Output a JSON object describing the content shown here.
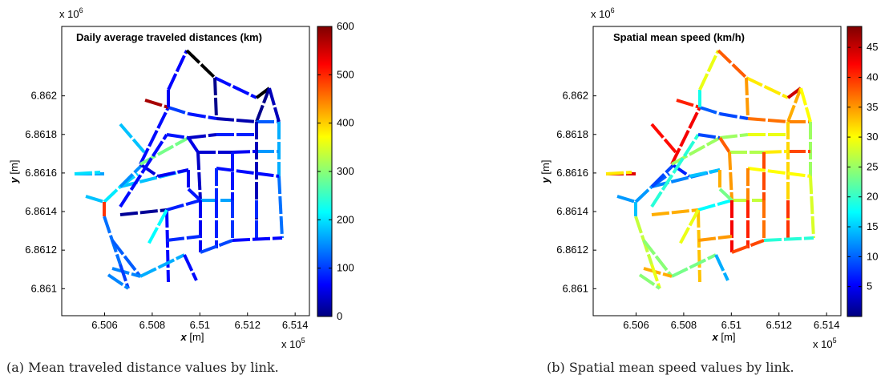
{
  "figure": {
    "caption_a": "(a) Mean traveled distance values by link.",
    "caption_b": "(b) Spatial mean speed values by link."
  },
  "chart_data": [
    {
      "type": "map",
      "title": "Daily average traveled distances (km)",
      "xlabel_var": "x",
      "xlabel_unit": " [m]",
      "ylabel_var": "y",
      "ylabel_unit": " [m]",
      "x_exponent": "x 10",
      "x_exponent_sup": "5",
      "y_exponent": "x 10",
      "y_exponent_sup": "6",
      "xlim": [
        6.5042,
        6.5146
      ],
      "ylim": [
        6.86086,
        6.86236
      ],
      "xticks": [
        6.506,
        6.508,
        6.51,
        6.512,
        6.514
      ],
      "xtick_labels": [
        "6.506",
        "6.508",
        "6.51",
        "6.512",
        "6.514"
      ],
      "yticks": [
        6.861,
        6.8612,
        6.8614,
        6.8616,
        6.8618,
        6.862
      ],
      "ytick_labels": [
        "6.861",
        "6.8612",
        "6.8614",
        "6.8616",
        "6.8618",
        "6.862"
      ],
      "colorbar": {
        "min": 0,
        "max": 600,
        "ticks": [
          0,
          100,
          200,
          300,
          400,
          500,
          600
        ],
        "tick_labels": [
          "0",
          "100",
          "200",
          "300",
          "400",
          "500",
          "600"
        ],
        "colormap": "jet"
      }
    },
    {
      "type": "map",
      "title": "Spatial mean speed (km/h)",
      "xlabel_var": "x",
      "xlabel_unit": " [m]",
      "ylabel_var": "y",
      "ylabel_unit": " [m]",
      "x_exponent": "x 10",
      "x_exponent_sup": "5",
      "y_exponent": "x 10",
      "y_exponent_sup": "6",
      "xlim": [
        6.5042,
        6.5146
      ],
      "ylim": [
        6.86086,
        6.86236
      ],
      "xticks": [
        6.506,
        6.508,
        6.51,
        6.512,
        6.514
      ],
      "xtick_labels": [
        "6.506",
        "6.508",
        "6.51",
        "6.512",
        "6.514"
      ],
      "yticks": [
        6.861,
        6.8612,
        6.8614,
        6.8616,
        6.8618,
        6.862
      ],
      "ytick_labels": [
        "6.861",
        "6.8612",
        "6.8614",
        "6.8616",
        "6.8618",
        "6.862"
      ],
      "colorbar": {
        "min": 0,
        "max": 48.5,
        "ticks": [
          5,
          10,
          15,
          20,
          25,
          30,
          35,
          40,
          45
        ],
        "tick_labels": [
          "5",
          "10",
          "15",
          "20",
          "25",
          "30",
          "35",
          "40",
          "45"
        ],
        "colormap": "jet"
      }
    }
  ]
}
